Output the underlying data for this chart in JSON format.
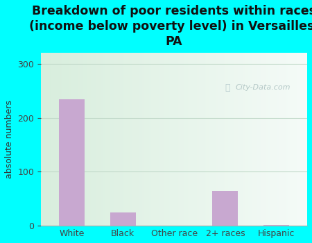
{
  "categories": [
    "White",
    "Black",
    "Other race",
    "2+ races",
    "Hispanic"
  ],
  "values": [
    235,
    25,
    0,
    65,
    2
  ],
  "bar_color": "#c8a8d0",
  "title": "Breakdown of poor residents within races\n(income below poverty level) in Versailles,\nPA",
  "ylabel": "absolute numbers",
  "ylim": [
    0,
    320
  ],
  "yticks": [
    0,
    100,
    200,
    300
  ],
  "background_color": "#00ffff",
  "plot_bg_left": "#d8eedd",
  "plot_bg_right": "#f5fbf8",
  "grid_color": "#c0d8c8",
  "title_fontsize": 12.5,
  "ylabel_fontsize": 9,
  "tick_fontsize": 9,
  "watermark": "City-Data.com"
}
